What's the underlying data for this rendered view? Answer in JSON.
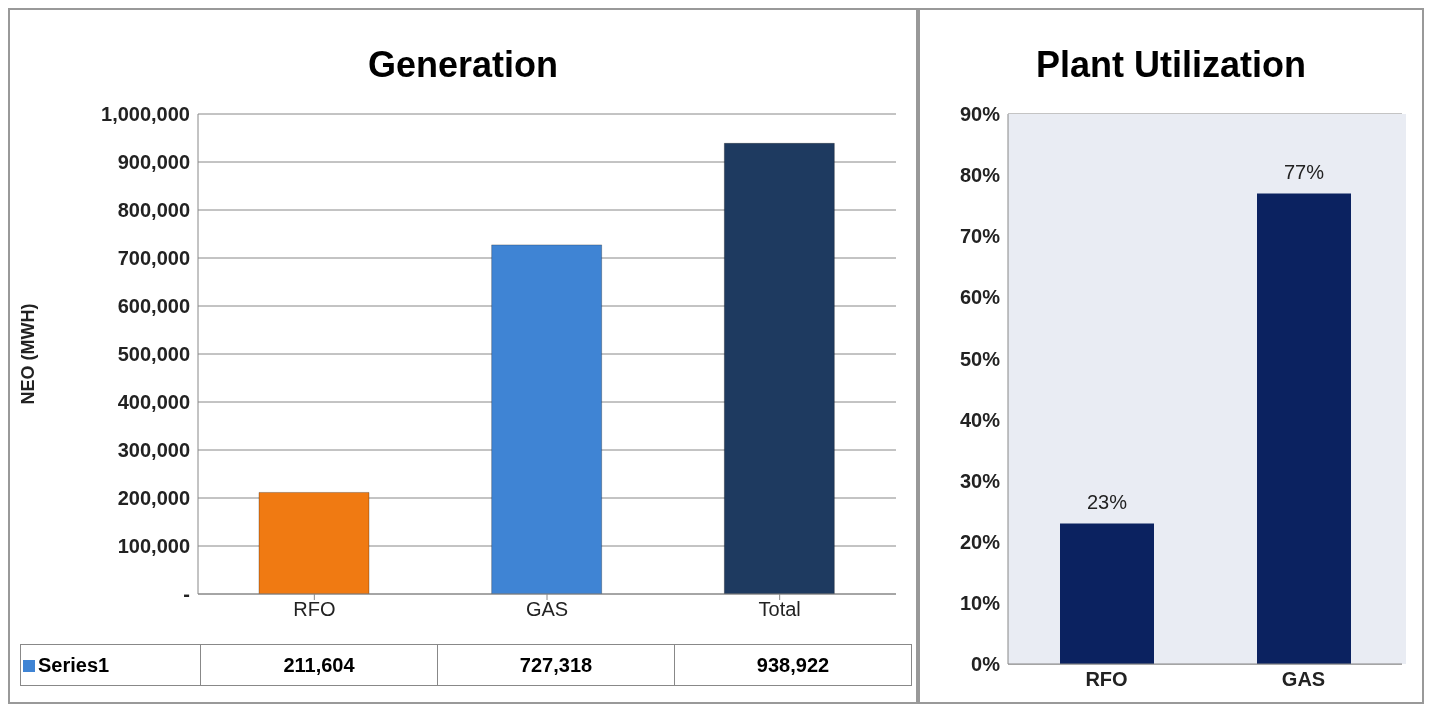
{
  "chart_data": [
    {
      "type": "bar",
      "title": "Generation",
      "ylabel": "NEO (MWH)",
      "categories": [
        "RFO",
        "GAS",
        "Total"
      ],
      "series": [
        {
          "name": "Series1",
          "colors": [
            "#f07a12",
            "#3f84d4",
            "#1e3a60"
          ],
          "values": [
            211604,
            727318,
            938922
          ],
          "value_labels": [
            "211,604",
            "727,318",
            "938,922"
          ]
        }
      ],
      "ylim": [
        0,
        1000000
      ],
      "yticks": [
        {
          "value": 0,
          "label": "-"
        },
        {
          "value": 100000,
          "label": "100,000"
        },
        {
          "value": 200000,
          "label": "200,000"
        },
        {
          "value": 300000,
          "label": "300,000"
        },
        {
          "value": 400000,
          "label": "400,000"
        },
        {
          "value": 500000,
          "label": "500,000"
        },
        {
          "value": 600000,
          "label": "600,000"
        },
        {
          "value": 700000,
          "label": "700,000"
        },
        {
          "value": 800000,
          "label": "800,000"
        },
        {
          "value": 900000,
          "label": "900,000"
        },
        {
          "value": 1000000,
          "label": "1,000,000"
        }
      ],
      "grid": "y",
      "legend": "bottom"
    },
    {
      "type": "bar",
      "title": "Plant Utilization",
      "categories": [
        "RFO",
        "GAS"
      ],
      "series": [
        {
          "color": "#0b2260",
          "values": [
            23,
            77
          ],
          "value_labels": [
            "23%",
            "77%"
          ]
        }
      ],
      "ylim": [
        0,
        90
      ],
      "yticks": [
        {
          "value": 0,
          "label": "0%"
        },
        {
          "value": 10,
          "label": "10%"
        },
        {
          "value": 20,
          "label": "20%"
        },
        {
          "value": 30,
          "label": "30%"
        },
        {
          "value": 40,
          "label": "40%"
        },
        {
          "value": 50,
          "label": "50%"
        },
        {
          "value": 60,
          "label": "60%"
        },
        {
          "value": 70,
          "label": "70%"
        },
        {
          "value": 80,
          "label": "80%"
        },
        {
          "value": 90,
          "label": "90%"
        }
      ],
      "grid": "y",
      "legend": false
    }
  ]
}
